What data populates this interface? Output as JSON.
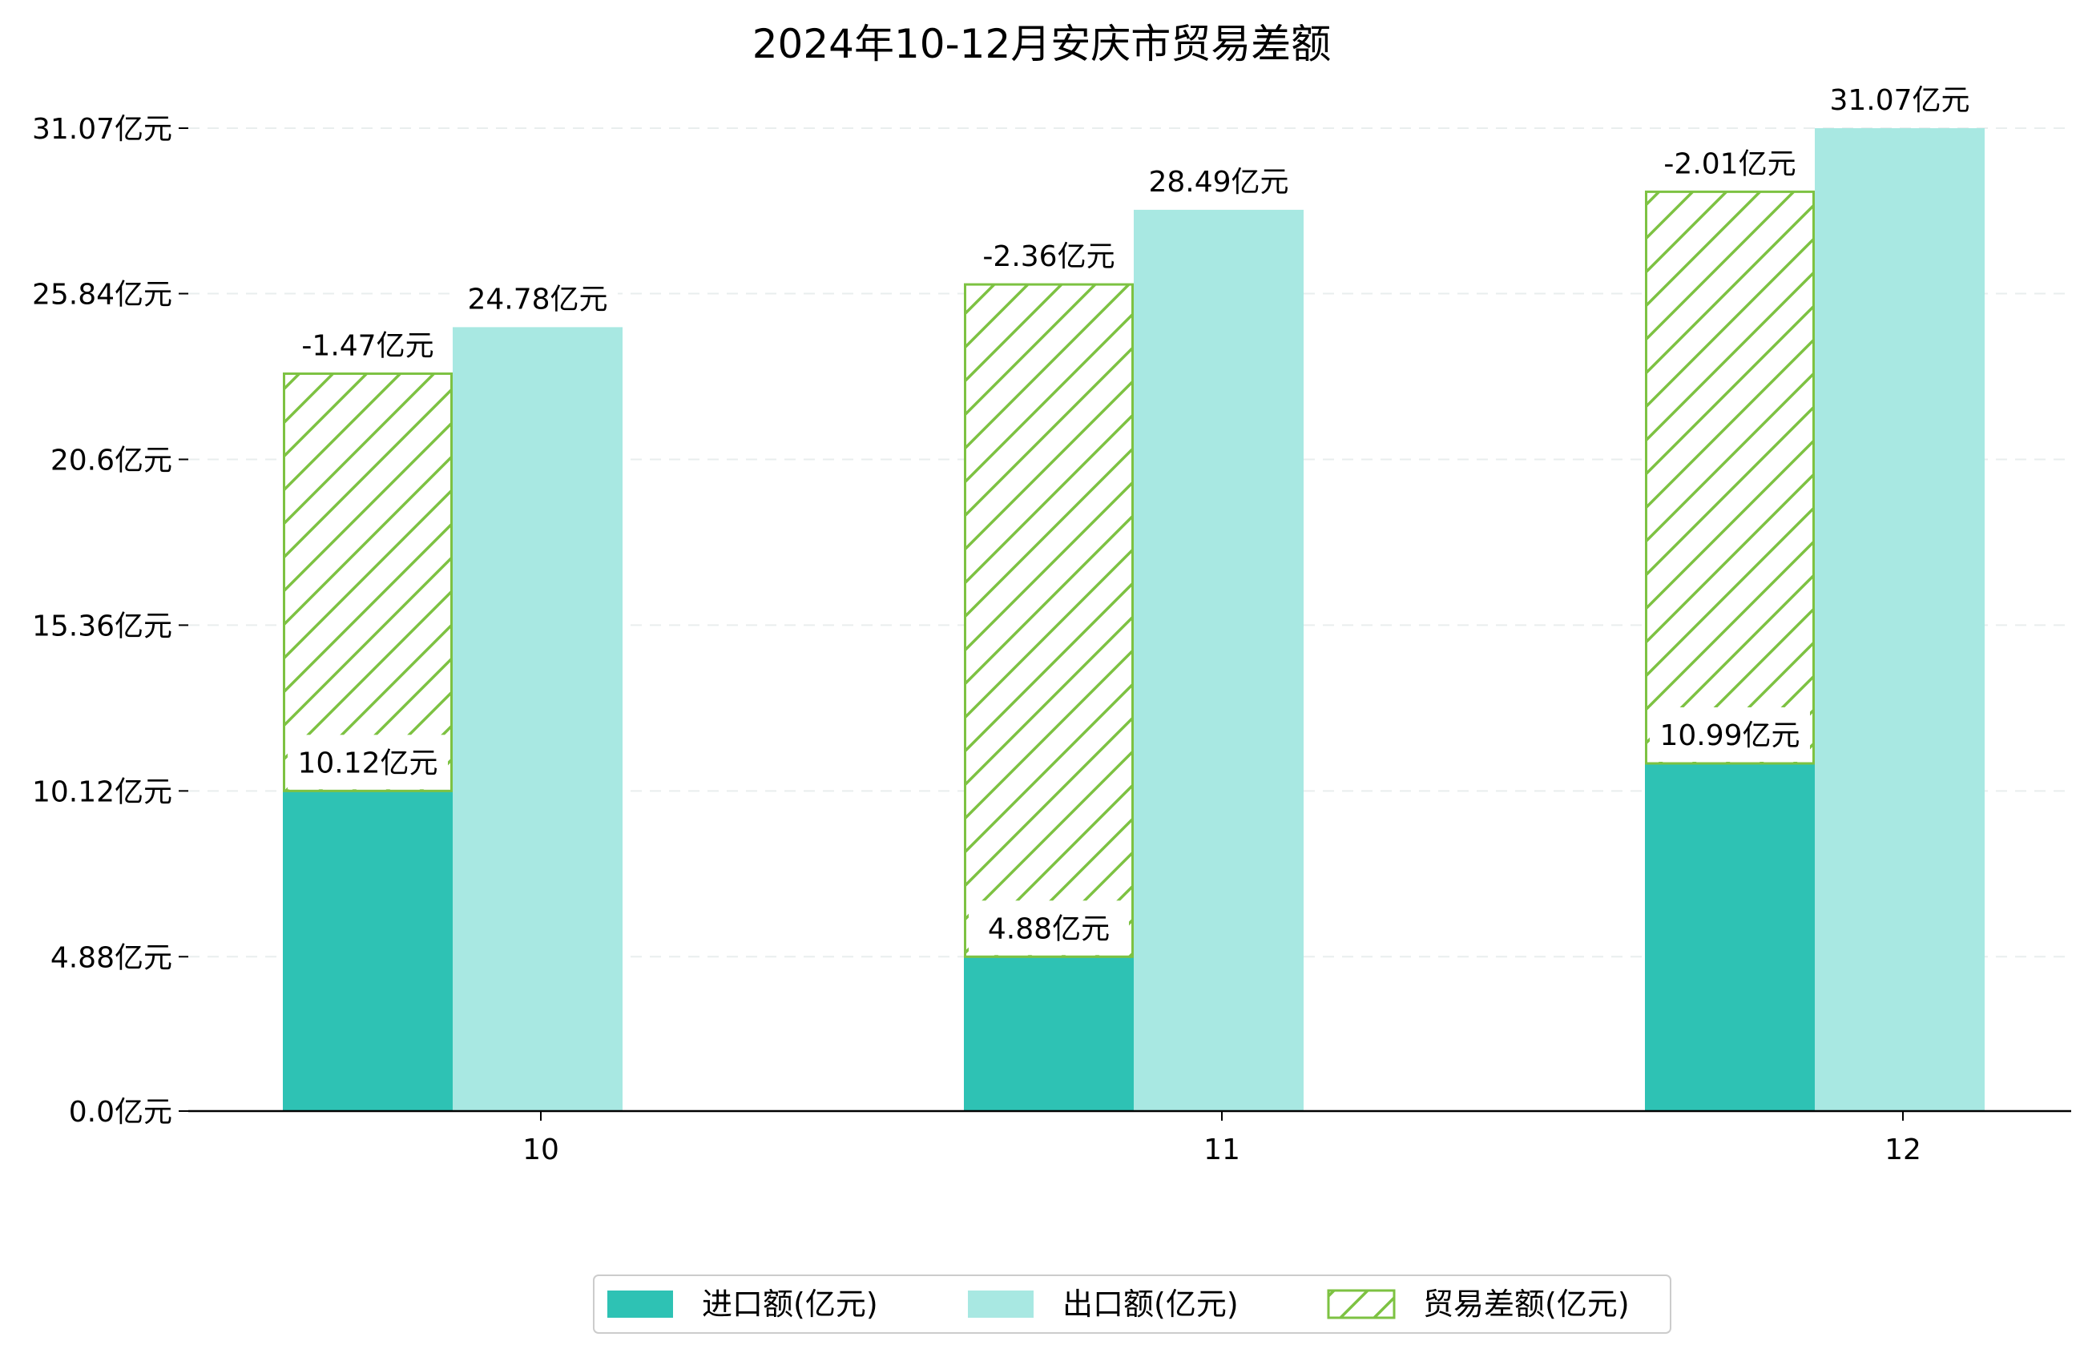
{
  "chart_data": {
    "type": "bar",
    "title": "2024年10-12月安庆市贸易差额",
    "categories": [
      "10",
      "11",
      "12"
    ],
    "series": [
      {
        "name": "进口额(亿元)",
        "values": [
          10.12,
          4.88,
          10.99
        ]
      },
      {
        "name": "出口额(亿元)",
        "values": [
          24.78,
          28.49,
          31.07
        ]
      },
      {
        "name": "贸易差额(亿元)",
        "values": [
          -1.47,
          -2.36,
          -2.01
        ]
      }
    ],
    "data_labels": {
      "import": [
        "10.12亿元",
        "4.88亿元",
        "10.99亿元"
      ],
      "export": [
        "24.78亿元",
        "28.49亿元",
        "31.07亿元"
      ],
      "balance": [
        "-1.47亿元",
        "-2.36亿元",
        "-2.01亿元"
      ]
    },
    "y_ticks": [
      0.0,
      4.88,
      10.12,
      15.36,
      20.6,
      25.84,
      31.07
    ],
    "y_tick_labels": [
      "0.0亿元",
      "4.88亿元",
      "10.12亿元",
      "15.36亿元",
      "20.6亿元",
      "25.84亿元",
      "31.07亿元"
    ],
    "ylim": [
      0,
      31.07
    ],
    "grid": true,
    "legend_position": "bottom-center",
    "colors": {
      "import": "#2ec2b4",
      "export": "#a8e8e2",
      "balance": "#7dc242"
    }
  }
}
